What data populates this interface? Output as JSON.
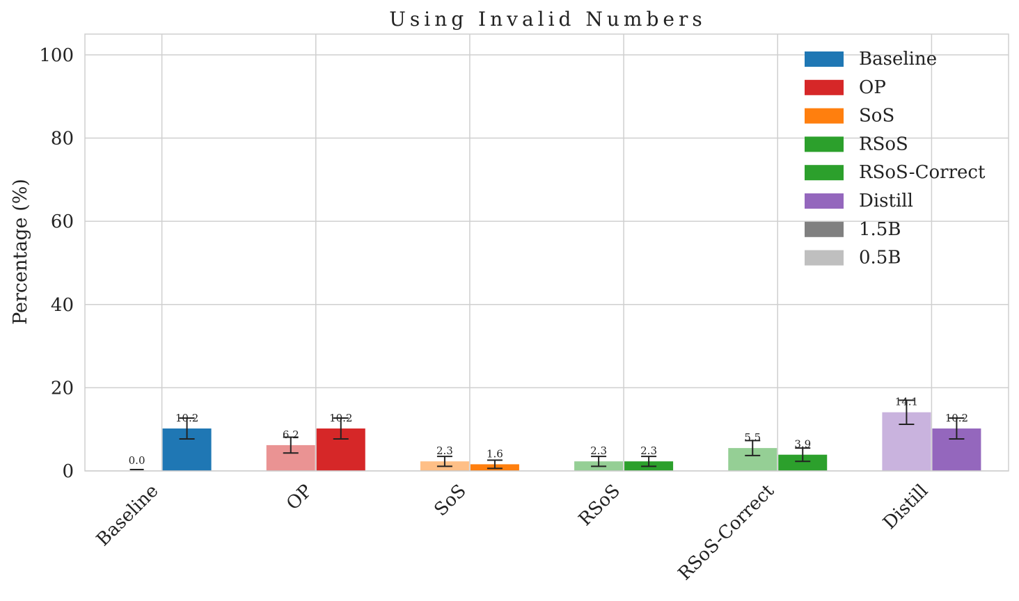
{
  "chart_data": {
    "type": "bar",
    "title": "Using Invalid Numbers",
    "ylabel": "Percentage (%)",
    "xlabel": "",
    "ylim": [
      0,
      105
    ],
    "yticks": [
      0,
      20,
      40,
      60,
      80,
      100
    ],
    "categories": [
      "Baseline",
      "OP",
      "SoS",
      "RSoS",
      "RSoS-Correct",
      "Distill"
    ],
    "colors": {
      "Baseline": "#1f77b4",
      "OP": "#d62728",
      "SoS": "#ff7f0e",
      "RSoS": "#2ca02c",
      "RSoS-Correct": "#2ca02c",
      "Distill": "#9467bd"
    },
    "series": [
      {
        "name": "0.5B",
        "alpha": 0.5,
        "values": [
          0.0,
          6.2,
          2.3,
          2.3,
          5.5,
          14.1
        ],
        "labels": [
          "0.0",
          "6.2",
          "2.3",
          "2.3",
          "5.5",
          "14.1"
        ],
        "errors": [
          0.0,
          1.9,
          1.2,
          1.2,
          1.8,
          2.9
        ]
      },
      {
        "name": "1.5B",
        "alpha": 1.0,
        "values": [
          10.2,
          10.2,
          1.6,
          2.3,
          3.9,
          10.2
        ],
        "labels": [
          "10.2",
          "10.2",
          "1.6",
          "2.3",
          "3.9",
          "10.2"
        ],
        "errors": [
          2.5,
          2.5,
          1.0,
          1.2,
          1.6,
          2.5
        ]
      }
    ],
    "legend": {
      "position": "top-right",
      "entries": [
        {
          "label": "Baseline",
          "color": "#1f77b4"
        },
        {
          "label": "OP",
          "color": "#d62728"
        },
        {
          "label": "SoS",
          "color": "#ff7f0e"
        },
        {
          "label": "RSoS",
          "color": "#2ca02c"
        },
        {
          "label": "RSoS-Correct",
          "color": "#2ca02c"
        },
        {
          "label": "Distill",
          "color": "#9467bd"
        },
        {
          "label": "1.5B",
          "color": "#808080"
        },
        {
          "label": "0.5B",
          "color": "#bfbfbf"
        }
      ]
    },
    "grid": true
  }
}
